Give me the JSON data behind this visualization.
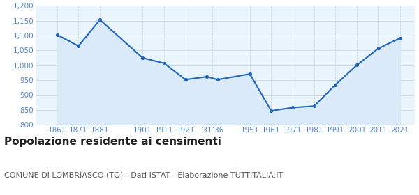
{
  "years": [
    1861,
    1871,
    1881,
    1901,
    1911,
    1921,
    1931,
    1936,
    1951,
    1961,
    1971,
    1981,
    1991,
    2001,
    2011,
    2021
  ],
  "population": [
    1103,
    1065,
    1153,
    1025,
    1007,
    952,
    962,
    952,
    971,
    847,
    858,
    863,
    935,
    1001,
    1057,
    1091
  ],
  "line_color": "#2266bb",
  "fill_color": "#daeaf8",
  "marker_color": "#2266bb",
  "background_color": "#eaf4fc",
  "grid_color": "#c5d8e8",
  "title": "Popolazione residente ai censimenti",
  "subtitle": "COMUNE DI LOMBRIASCO (TO) - Dati ISTAT - Elaborazione TUTTITALIA.IT",
  "ylim": [
    800,
    1200
  ],
  "yticks": [
    800,
    850,
    900,
    950,
    1000,
    1050,
    1100,
    1150,
    1200
  ],
  "ytick_labels": [
    "800",
    "850",
    "900",
    "950",
    "1,000",
    "1,050",
    "1,100",
    "1,150",
    "1,200"
  ],
  "title_fontsize": 11,
  "subtitle_fontsize": 8,
  "tick_color": "#5588cc",
  "tick_fontsize": 7.5,
  "xtick_positions": [
    1861,
    1871,
    1881,
    1901,
    1911,
    1921,
    1933.5,
    1951,
    1961,
    1971,
    1981,
    1991,
    2001,
    2011,
    2021
  ],
  "xtick_labels": [
    "1861",
    "1871",
    "1881",
    "1901",
    "1911",
    "1921",
    "’31’36",
    "1951",
    "1961",
    "1971",
    "1981",
    "1991",
    "2001",
    "2011",
    "2021"
  ],
  "xlim": [
    1851,
    2028
  ]
}
